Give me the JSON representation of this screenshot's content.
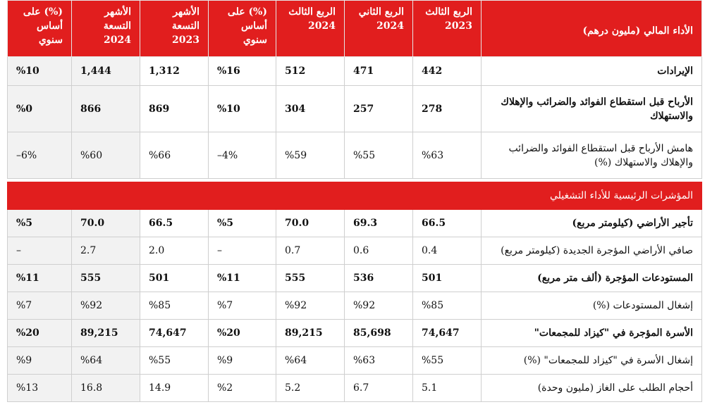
{
  "headers": [
    {
      "line1": "الأداء المالي (مليون درهم)",
      "line2": ""
    },
    {
      "line1": "الربع الثالث",
      "line2": "2023"
    },
    {
      "line1": "الربع الثاني",
      "line2": "2024"
    },
    {
      "line1": "الربع الثالث",
      "line2": "2024"
    },
    {
      "line1": "(%) على",
      "line2": "أساس سنوي"
    },
    {
      "line1": "الأشهر التسعة",
      "line2": "2023"
    },
    {
      "line1": "الأشهر التسعة",
      "line2": "2024"
    },
    {
      "line1": "(%) على",
      "line2": "أساس سنوي"
    }
  ],
  "financial_rows": [
    {
      "label": "الإيرادات",
      "values": [
        "442",
        "471",
        "512",
        "%16",
        "1,312",
        "1,444",
        "%10"
      ],
      "bold": true,
      "label_bold": true
    },
    {
      "label": "الأرباح قبل استقطاع الفوائد والضرائب والإهلاك والاستهلاك",
      "values": [
        "278",
        "257",
        "304",
        "%10",
        "869",
        "866",
        "%0"
      ],
      "bold": true,
      "label_bold": true
    },
    {
      "label": "هامش الأرباح قبل استقطاع الفوائد والضرائب والإهلاك والاستهلاك (%)",
      "values": [
        "%63",
        "%55",
        "%59",
        "4%–",
        "%66",
        "%60",
        "6%–"
      ],
      "bold": false,
      "label_bold": false
    }
  ],
  "section_title": "المؤشرات الرئيسية للأداء التشغيلي",
  "operational_rows": [
    {
      "label": "تأجير الأراضي (كيلومتر مربع)",
      "values": [
        "66.5",
        "69.3",
        "70.0",
        "%5",
        "66.5",
        "70.0",
        "%5"
      ],
      "bold": true,
      "label_bold": true
    },
    {
      "label": "صافي الأراضي المؤجرة الجديدة (كيلومتر مربع)",
      "values": [
        "0.4",
        "0.6",
        "0.7",
        "–",
        "2.0",
        "2.7",
        "–"
      ],
      "bold": false,
      "label_bold": false
    },
    {
      "label": "المستودعات المؤجرة (ألف متر مربع)",
      "values": [
        "501",
        "536",
        "555",
        "%11",
        "501",
        "555",
        "%11"
      ],
      "bold": true,
      "label_bold": true
    },
    {
      "label": "إشغال المستودعات (%)",
      "values": [
        "%85",
        "%92",
        "%92",
        "%7",
        "%85",
        "%92",
        "%7"
      ],
      "bold": false,
      "label_bold": false
    },
    {
      "label": "الأسرة المؤجرة في \"كيزاد للمجمعات\"",
      "values": [
        "74,647",
        "85,698",
        "89,215",
        "%20",
        "74,647",
        "89,215",
        "%20"
      ],
      "bold": true,
      "label_bold": true
    },
    {
      "label": "إشغال الأسرة في \"كيزاد للمجمعات\" (%)",
      "values": [
        "%55",
        "%63",
        "%64",
        "%9",
        "%55",
        "%64",
        "%9"
      ],
      "bold": false,
      "label_bold": false
    },
    {
      "label": "أحجام الطلب على الغاز (مليون وحدة)",
      "values": [
        "5.1",
        "6.7",
        "5.2",
        "%2",
        "14.9",
        "16.8",
        "%13"
      ],
      "bold": false,
      "label_bold": false
    }
  ]
}
